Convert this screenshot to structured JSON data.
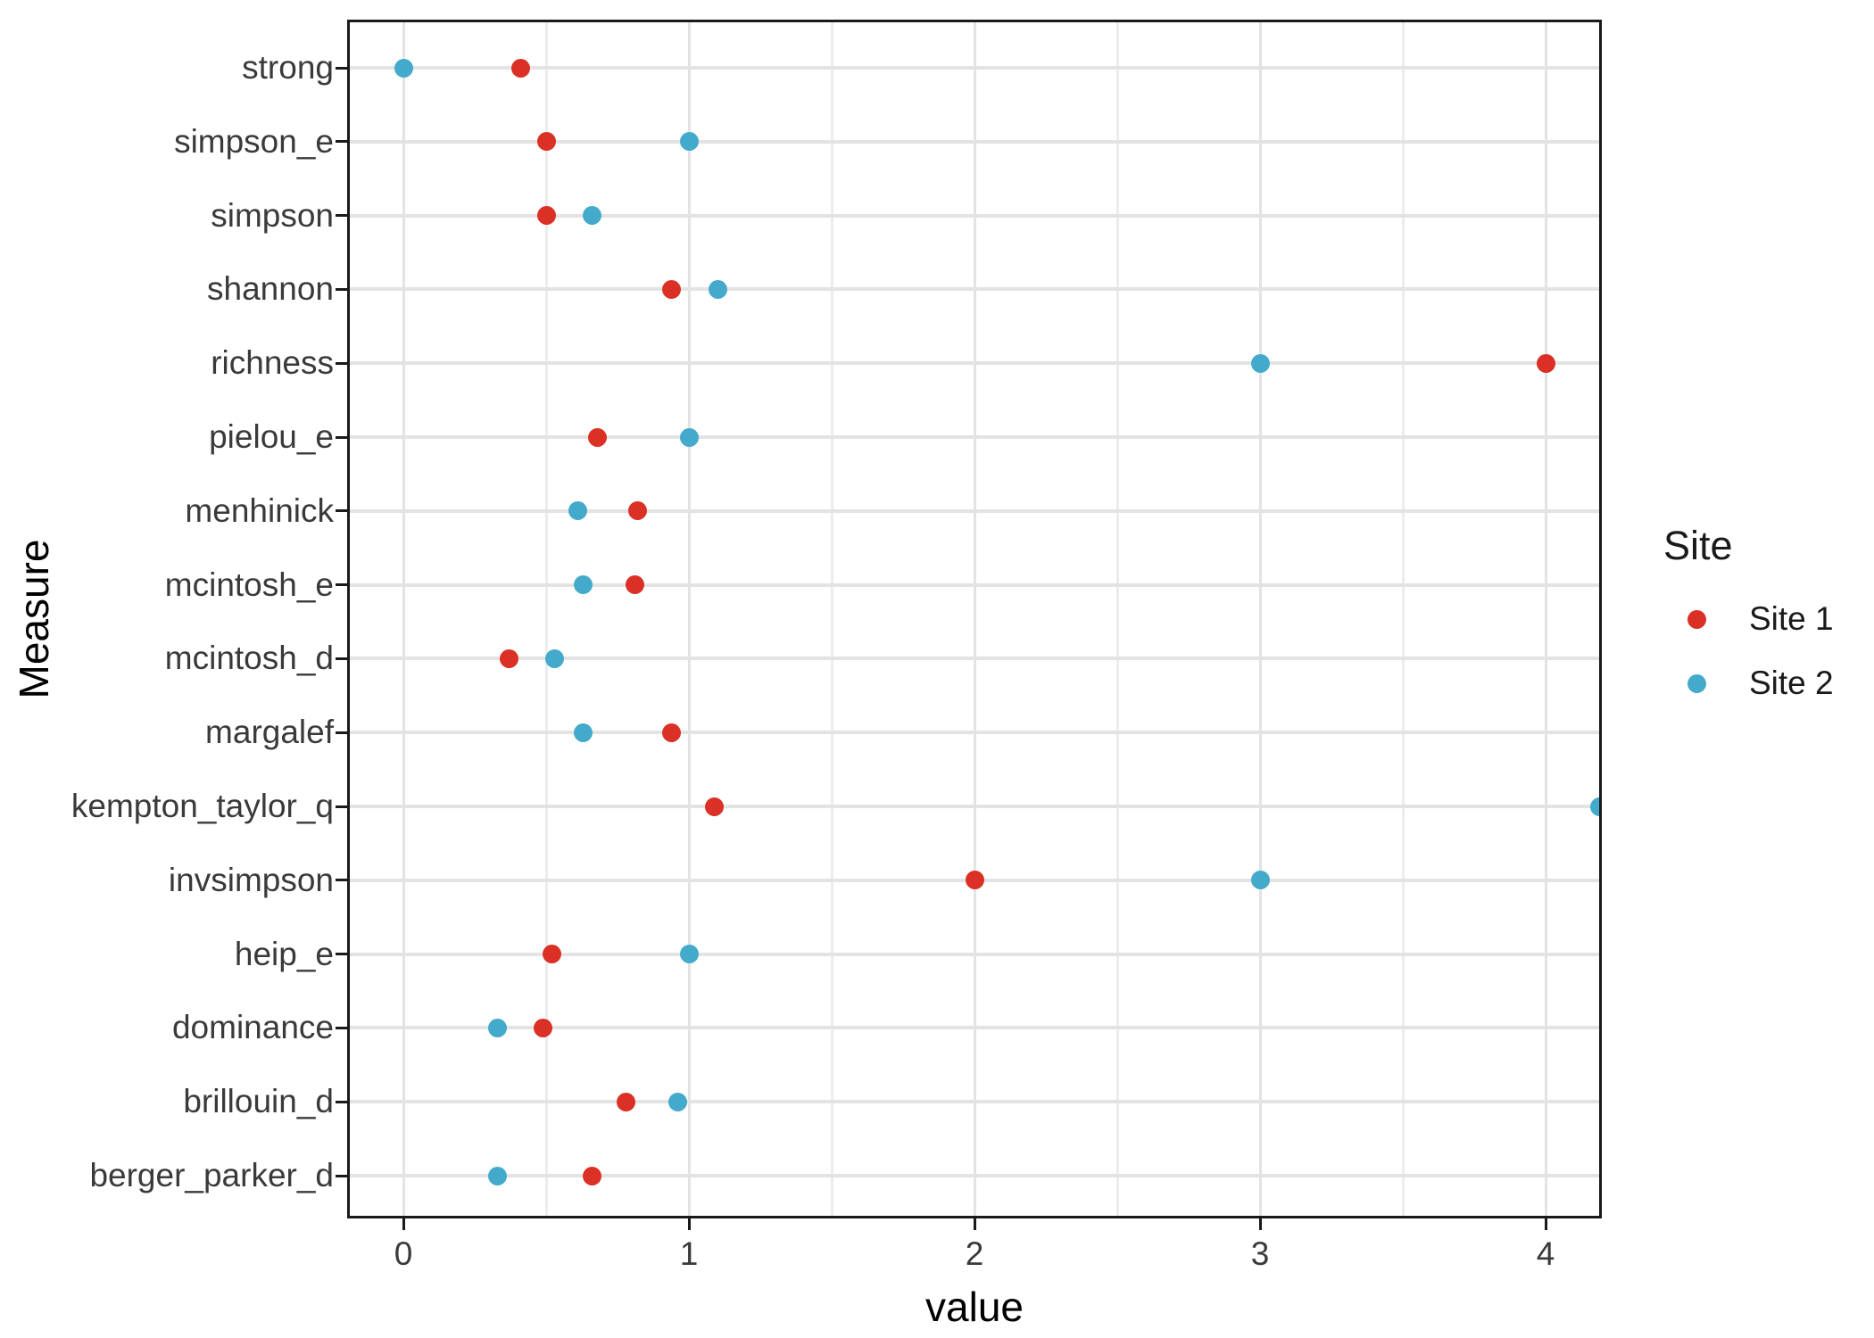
{
  "chart_data": {
    "type": "scatter",
    "subtype": "horizontal-dot-plot",
    "title": "",
    "xlabel": "value",
    "ylabel": "Measure",
    "xlim": [
      -0.19,
      4.2
    ],
    "x_ticks": [
      0,
      1,
      2,
      3,
      4
    ],
    "x_minor_gridlines": [
      0.5,
      1.5,
      2.5,
      3.5
    ],
    "grid": "on",
    "legend_position": "right",
    "categories_top_to_bottom": [
      "strong",
      "simpson_e",
      "simpson",
      "shannon",
      "richness",
      "pielou_e",
      "menhinick",
      "mcintosh_e",
      "mcintosh_d",
      "margalef",
      "kempton_taylor_q",
      "invsimpson",
      "heip_e",
      "dominance",
      "brillouin_d",
      "berger_parker_d"
    ],
    "series": [
      {
        "name": "Site 1",
        "color": "#db3026",
        "values": [
          0.41,
          0.5,
          0.5,
          0.94,
          4.0,
          0.68,
          0.82,
          0.81,
          0.37,
          0.94,
          1.09,
          2.0,
          0.52,
          0.49,
          0.78,
          0.66
        ]
      },
      {
        "name": "Site 2",
        "color": "#44aacb",
        "values": [
          0.0,
          1.0,
          0.66,
          1.1,
          3.0,
          1.0,
          0.61,
          0.63,
          0.53,
          0.63,
          4.19,
          3.0,
          1.0,
          0.33,
          0.96,
          0.33
        ]
      }
    ],
    "legend": {
      "title": "Site",
      "entries": [
        {
          "label": "Site 1",
          "color": "#db3026"
        },
        {
          "label": "Site 2",
          "color": "#44aacb"
        }
      ]
    }
  }
}
